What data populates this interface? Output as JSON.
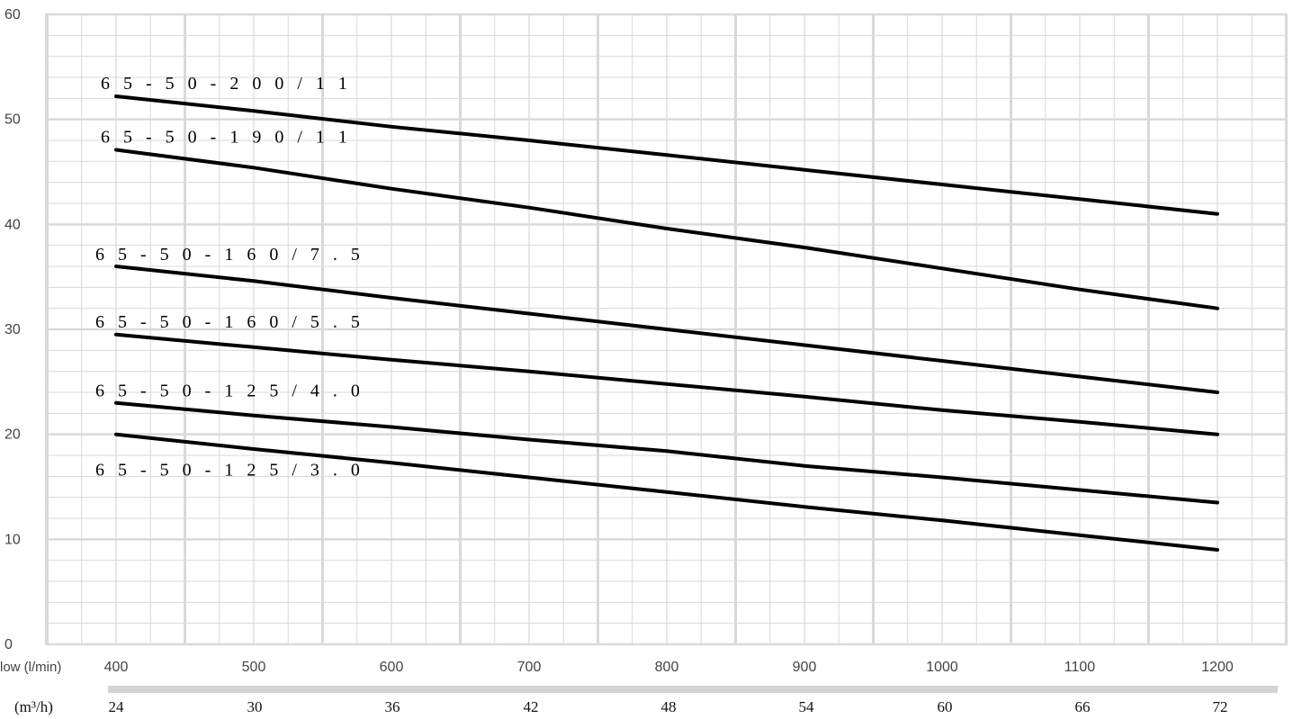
{
  "chart_data": {
    "type": "line",
    "title": "",
    "xlabel": "low (l/min)",
    "x2label": "(m³/h)",
    "ylabel": "",
    "xlim": [
      400,
      1200
    ],
    "ylim": [
      0,
      60
    ],
    "x_ticks": [
      "400",
      "500",
      "600",
      "700",
      "800",
      "900",
      "1000",
      "1100",
      "1200"
    ],
    "x_tick_values": [
      400,
      500,
      600,
      700,
      800,
      900,
      1000,
      1100,
      1200
    ],
    "x2_ticks": [
      "24",
      "30",
      "36",
      "42",
      "48",
      "54",
      "60",
      "66",
      "72"
    ],
    "y_ticks": [
      "0",
      "10",
      "20",
      "30",
      "40",
      "50",
      "60"
    ],
    "y_tick_values": [
      0,
      10,
      20,
      30,
      40,
      50,
      60
    ],
    "grid": true,
    "legend": "none (labels placed beside line starts)",
    "line_color": "#000000",
    "grid_color": "#d9d9d9",
    "x": [
      400,
      500,
      600,
      700,
      800,
      900,
      1000,
      1100,
      1200
    ],
    "series": [
      {
        "name": "6 5 - 5 0 - 2 0 0 / 1 1",
        "values": [
          52.2,
          50.8,
          49.3,
          48.0,
          46.6,
          45.2,
          43.8,
          42.4,
          41.0
        ]
      },
      {
        "name": "6 5 - 5 0 - 1 9 0 / 1 1",
        "values": [
          47.1,
          45.4,
          43.4,
          41.6,
          39.6,
          37.8,
          35.8,
          33.8,
          32.0
        ]
      },
      {
        "name": "6 5 - 5 0 - 1 6 0 / 7 . 5",
        "values": [
          36.0,
          34.6,
          33.0,
          31.5,
          30.0,
          28.5,
          27.0,
          25.5,
          24.0
        ]
      },
      {
        "name": "6 5 - 5 0 - 1 6 0 / 5 . 5",
        "values": [
          29.5,
          28.3,
          27.1,
          26.0,
          24.8,
          23.6,
          22.3,
          21.2,
          20.0
        ]
      },
      {
        "name": "6 5 - 5 0 - 1 2 5 / 4 . 0",
        "values": [
          23.0,
          21.8,
          20.7,
          19.5,
          18.4,
          17.0,
          15.9,
          14.7,
          13.5
        ]
      },
      {
        "name": "6 5 - 5 0 - 1 2 5 / 3 . 0",
        "values": [
          20.0,
          18.6,
          17.3,
          15.9,
          14.5,
          13.1,
          11.8,
          10.4,
          9.0
        ]
      }
    ]
  }
}
